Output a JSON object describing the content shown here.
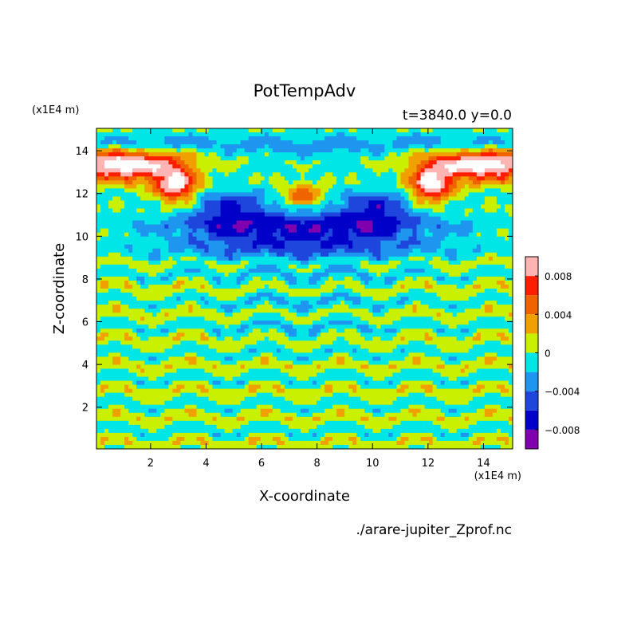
{
  "chart_data": {
    "type": "heatmap",
    "title": "PotTempAdv",
    "subtitle": "t=3840.0 y=0.0",
    "xlabel": "X-coordinate",
    "ylabel": "Z-coordinate",
    "x_unit": "(x1E4 m)",
    "y_unit": "(x1E4 m)",
    "source_file": "./arare-jupiter_Zprof.nc",
    "xlim": [
      0.05,
      15.05
    ],
    "ylim": [
      0.05,
      15.05
    ],
    "x_ticks": [
      2,
      4,
      6,
      8,
      10,
      12,
      14
    ],
    "y_ticks": [
      2,
      4,
      6,
      8,
      10,
      12,
      14
    ],
    "x_tick_labels": [
      "2",
      "4",
      "6",
      "8",
      "10",
      "12",
      "14"
    ],
    "y_tick_labels": [
      "2",
      "4",
      "6",
      "8",
      "10",
      "12",
      "14"
    ],
    "colorbar": {
      "levels": [
        -0.01,
        -0.008,
        -0.006,
        -0.004,
        -0.002,
        0,
        0.002,
        0.004,
        0.006,
        0.008,
        0.01
      ],
      "colors": [
        "#8000b0",
        "#0000c8",
        "#1e46dc",
        "#1e96f0",
        "#00e6e6",
        "#c8f000",
        "#f0a000",
        "#f06400",
        "#ff1e00",
        "#ffb4b4"
      ],
      "tick_values": [
        0.008,
        0.004,
        0,
        -0.004,
        -0.008
      ],
      "tick_labels": [
        "0.008",
        "0.004",
        "0",
        "−0.004",
        "−0.008"
      ]
    },
    "description_regions": [
      {
        "z_range": [
          0,
          2.5
        ],
        "dominant": "0 to 0.002 / -0.002 to 0 (yellow-green / cyan stripes)"
      },
      {
        "z_range": [
          2.5,
          8
        ],
        "dominant": "mixed cyan and yellow-green bands"
      },
      {
        "z_range": [
          8,
          11
        ],
        "dominant": "-0.008 to -0.004 (blue) core with cyan"
      },
      {
        "z_range": [
          11,
          15
        ],
        "dominant": "strong positive (white/pink/red) jets at sides, cyan top"
      }
    ]
  }
}
